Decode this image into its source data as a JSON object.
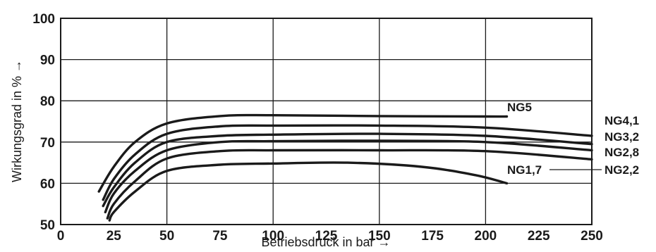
{
  "chart_data": {
    "type": "line",
    "title": "",
    "xlabel": "Betriebsdruck in bar →",
    "ylabel": "Wirkungsgrad in %  →",
    "xlim": [
      0,
      250
    ],
    "ylim": [
      50,
      100
    ],
    "xticks": [
      "0",
      "25",
      "50",
      "75",
      "100",
      "125",
      "150",
      "175",
      "200",
      "225",
      "250"
    ],
    "yticks": [
      "50",
      "60",
      "70",
      "80",
      "90",
      "100"
    ],
    "grid": true,
    "series": [
      {
        "name": "NG5",
        "x": [
          18,
          25,
          35,
          50,
          75,
          100,
          150,
          200,
          210
        ],
        "y": [
          58,
          64,
          70,
          74.5,
          76.3,
          76.5,
          76.3,
          76.2,
          76.2
        ]
      },
      {
        "name": "NG4,1",
        "x": [
          20,
          25,
          35,
          50,
          75,
          100,
          150,
          200,
          250
        ],
        "y": [
          56,
          61,
          67,
          72,
          73.8,
          74,
          74,
          73.5,
          71.5
        ]
      },
      {
        "name": "NG3,2",
        "x": [
          20,
          25,
          35,
          50,
          75,
          100,
          150,
          200,
          250
        ],
        "y": [
          54.5,
          59,
          65,
          70,
          71.5,
          71.8,
          72,
          71.5,
          69.5
        ]
      },
      {
        "name": "NG2,8",
        "x": [
          21,
          25,
          35,
          50,
          75,
          100,
          150,
          200,
          250
        ],
        "y": [
          53,
          57.5,
          63,
          68,
          70,
          70.2,
          70.3,
          70,
          68
        ]
      },
      {
        "name": "NG2,2",
        "x": [
          22,
          25,
          35,
          50,
          75,
          100,
          150,
          200,
          250
        ],
        "y": [
          51.5,
          55,
          60.5,
          66,
          67.8,
          68,
          68,
          67.8,
          65.8
        ]
      },
      {
        "name": "NG1,7",
        "x": [
          23,
          25,
          35,
          50,
          75,
          100,
          135,
          170,
          195,
          210
        ],
        "y": [
          51,
          53,
          58,
          63,
          64.5,
          64.8,
          65,
          64,
          62,
          60
        ]
      }
    ]
  }
}
